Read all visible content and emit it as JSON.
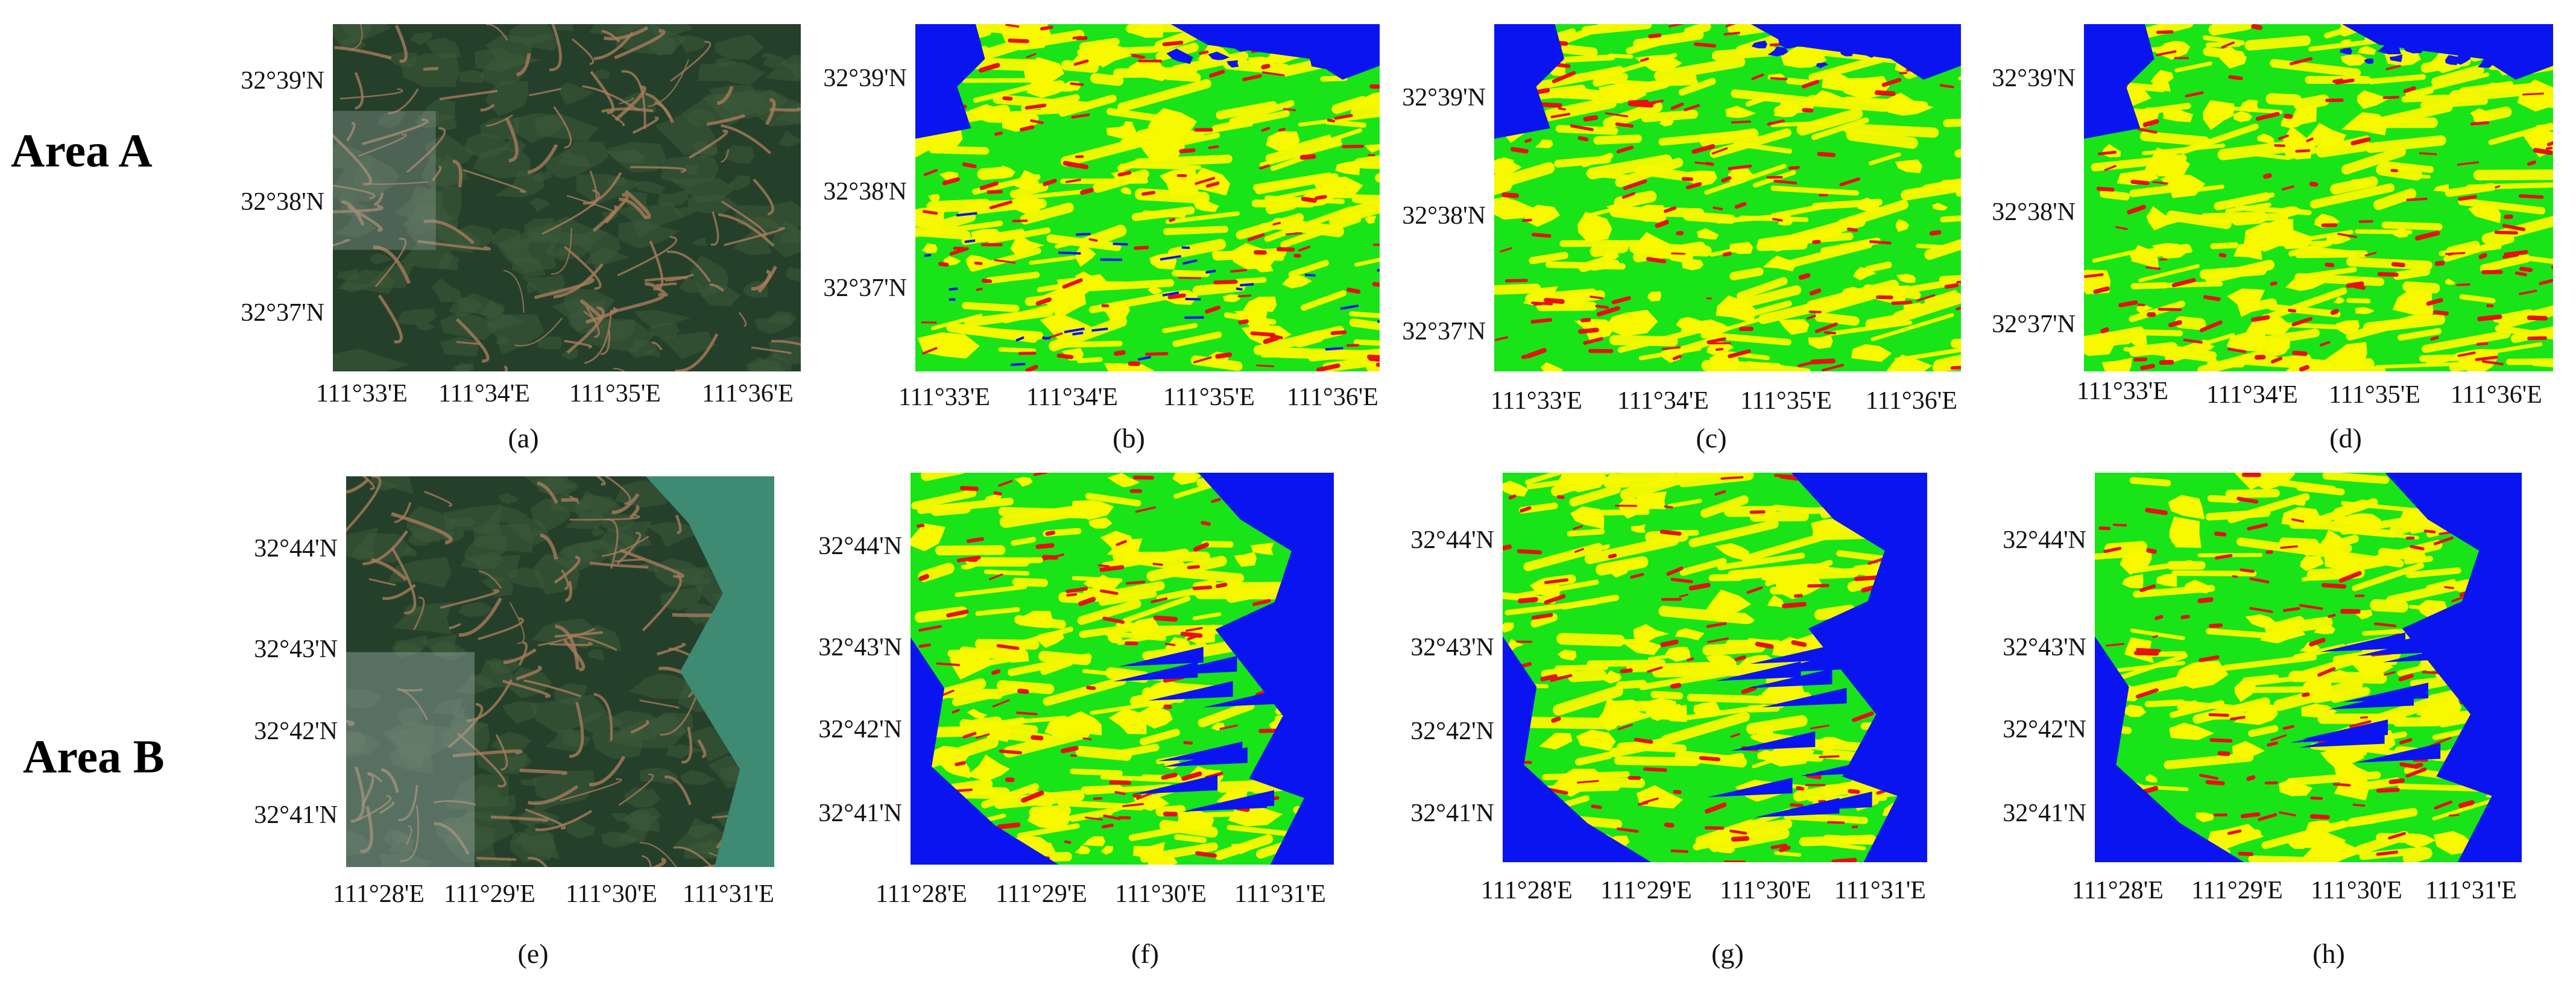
{
  "rows": [
    {
      "label": "Area A",
      "latitude_ticks": [
        "32°39'N",
        "32°38'N",
        "32°37'N"
      ],
      "longitude_ticks": [
        "111°33'E",
        "111°34'E",
        "111°35'E",
        "111°36'E"
      ],
      "panels": [
        {
          "caption": "(a)",
          "kind": "satellite"
        },
        {
          "caption": "(b)",
          "kind": "classification"
        },
        {
          "caption": "(c)",
          "kind": "classification"
        },
        {
          "caption": "(d)",
          "kind": "classification"
        }
      ]
    },
    {
      "label": "Area B",
      "latitude_ticks": [
        "32°44'N",
        "32°43'N",
        "32°42'N",
        "32°41'N"
      ],
      "longitude_ticks": [
        "111°28'E",
        "111°29'E",
        "111°30'E",
        "111°31'E"
      ],
      "panels": [
        {
          "caption": "(e)",
          "kind": "satellite"
        },
        {
          "caption": "(f)",
          "kind": "classification"
        },
        {
          "caption": "(g)",
          "kind": "classification"
        },
        {
          "caption": "(h)",
          "kind": "classification"
        }
      ]
    }
  ],
  "classification_colors": {
    "water": "#0a14f0",
    "high_vegetation": "#18e418",
    "moderate": "#f8f800",
    "low": "#e81010"
  },
  "satellite_colors": {
    "forest_dark": "#24402a",
    "forest_mid": "#3c5a3a",
    "bare_soil": "#a87a5a",
    "water_teal": "#3e8a72",
    "haze": "#9aaaa4"
  }
}
